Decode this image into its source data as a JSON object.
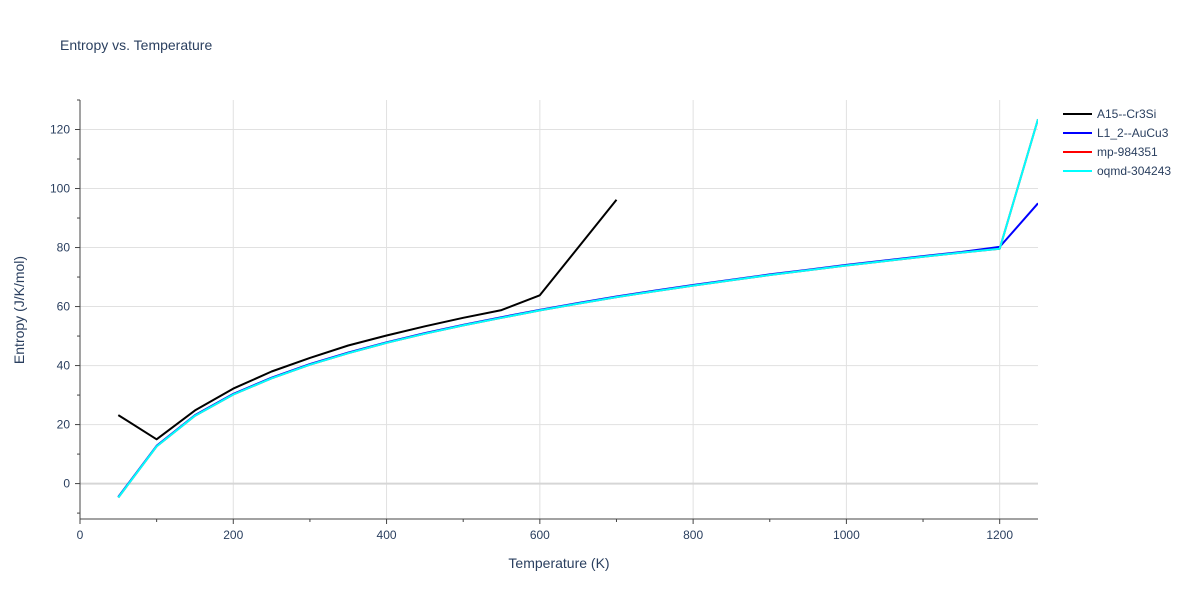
{
  "chart_data": {
    "type": "line",
    "title": "Entropy vs. Temperature",
    "xlabel": "Temperature (K)",
    "ylabel": "Entropy (J/K/mol)",
    "xlim": [
      0,
      1250
    ],
    "ylim": [
      -12,
      130
    ],
    "xticks": [
      0,
      200,
      400,
      600,
      800,
      1000,
      1200
    ],
    "yticks": [
      0,
      20,
      40,
      60,
      80,
      100,
      120
    ],
    "grid": true,
    "legend_position": "top-right",
    "series": [
      {
        "name": "A15--Cr3Si",
        "color": "#000000",
        "x": [
          50,
          100,
          150,
          200,
          250,
          300,
          350,
          400,
          450,
          500,
          550,
          600,
          650,
          700
        ],
        "y": [
          23.2,
          15.0,
          24.8,
          32.2,
          38.0,
          42.6,
          46.8,
          50.2,
          53.3,
          56.2,
          58.8,
          63.8,
          80.0,
          96.2
        ]
      },
      {
        "name": "L1_2--AuCu3",
        "color": "#0000ff",
        "x": [
          50,
          100,
          150,
          200,
          250,
          300,
          350,
          400,
          450,
          500,
          550,
          600,
          650,
          700,
          750,
          800,
          850,
          900,
          950,
          1000,
          1050,
          1100,
          1150,
          1200,
          1250
        ],
        "y": [
          -4.5,
          12.8,
          23.2,
          30.4,
          35.9,
          40.5,
          44.4,
          47.9,
          51.0,
          53.8,
          56.4,
          58.9,
          61.2,
          63.4,
          65.4,
          67.3,
          69.1,
          70.9,
          72.5,
          74.1,
          75.6,
          77.1,
          78.5,
          80.2,
          95.0
        ]
      },
      {
        "name": "mp-984351",
        "color": "#ff0000",
        "x": [
          50,
          100,
          150,
          200,
          250,
          300,
          350,
          400,
          450,
          500,
          550,
          600,
          650,
          700,
          750,
          800,
          850,
          900,
          950,
          1000,
          1050,
          1100,
          1150,
          1200,
          1250
        ],
        "y": [
          -4.7,
          12.6,
          23.0,
          30.2,
          35.7,
          40.3,
          44.2,
          47.7,
          50.8,
          53.6,
          56.2,
          58.7,
          61.0,
          63.2,
          65.2,
          67.1,
          68.9,
          70.7,
          72.3,
          73.9,
          75.4,
          76.9,
          78.3,
          79.6,
          123.5
        ]
      },
      {
        "name": "oqmd-304243",
        "color": "#00ffff",
        "x": [
          50,
          100,
          150,
          200,
          250,
          300,
          350,
          400,
          450,
          500,
          550,
          600,
          650,
          700,
          750,
          800,
          850,
          900,
          950,
          1000,
          1050,
          1100,
          1150,
          1200,
          1250
        ],
        "y": [
          -4.7,
          12.6,
          23.0,
          30.2,
          35.7,
          40.3,
          44.2,
          47.7,
          50.8,
          53.6,
          56.2,
          58.7,
          61.0,
          63.2,
          65.2,
          67.1,
          68.9,
          70.7,
          72.3,
          73.9,
          75.4,
          76.9,
          78.3,
          79.6,
          123.5
        ]
      }
    ]
  }
}
